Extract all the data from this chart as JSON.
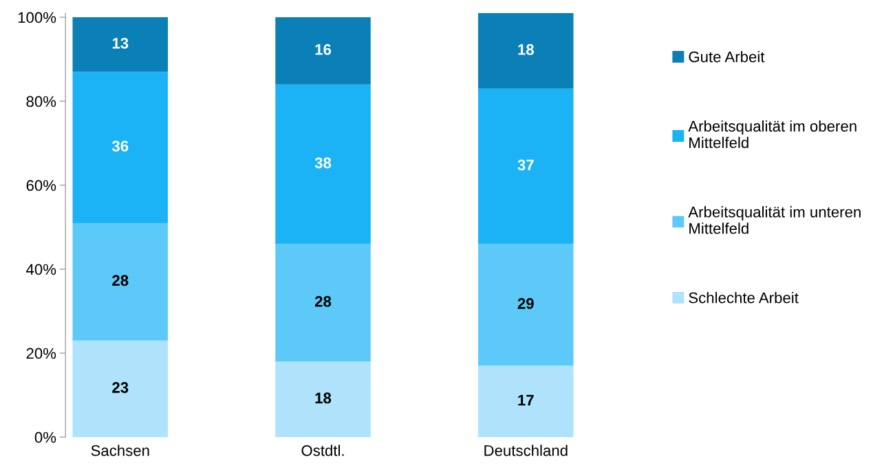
{
  "chart_data": {
    "type": "bar",
    "stacked": true,
    "categories": [
      "Sachsen",
      "Ostdtl.",
      "Deutschland"
    ],
    "series": [
      {
        "name": "Schlechte Arbeit",
        "color": "#aee3fb",
        "values": [
          23,
          18,
          17
        ]
      },
      {
        "name": "Arbeitsqualität im unteren\nMittelfeld",
        "color": "#5dc9f8",
        "values": [
          28,
          28,
          29
        ]
      },
      {
        "name": "Arbeitsqualität im oberen\nMittelfeld",
        "color": "#1bb3f6",
        "values": [
          36,
          38,
          37
        ]
      },
      {
        "name": "Gute Arbeit",
        "color": "#0a80b6",
        "values": [
          13,
          16,
          18
        ]
      }
    ],
    "ylim": [
      0,
      101
    ],
    "yticks": [
      {
        "value": 0,
        "label": "0%"
      },
      {
        "value": 20,
        "label": "20%"
      },
      {
        "value": 40,
        "label": "40%"
      },
      {
        "value": 60,
        "label": "60%"
      },
      {
        "value": 80,
        "label": "80%"
      },
      {
        "value": 100,
        "label": "100%"
      }
    ],
    "data_labels": true,
    "grid": false,
    "legend": "right"
  }
}
